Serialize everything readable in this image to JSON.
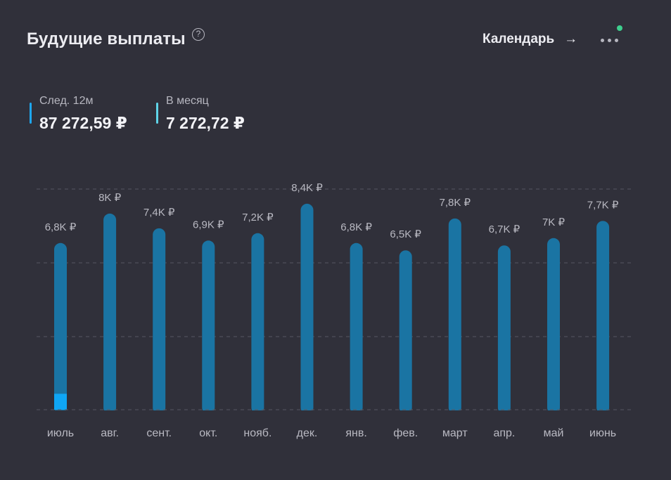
{
  "header": {
    "title": "Будущие выплаты",
    "help_icon": "question-circle-icon",
    "help_glyph": "?",
    "calendar_label": "Календарь",
    "calendar_arrow": "→",
    "more_icon": "ellipsis-icon",
    "notification_color": "#3ecf8e"
  },
  "stats": [
    {
      "label": "След. 12м",
      "value": "87 272,59 ₽",
      "color": "#1ea7f0"
    },
    {
      "label": "В месяц",
      "value": "7 272,72 ₽",
      "color": "#5fd4e8"
    }
  ],
  "chart_data": {
    "type": "bar",
    "categories": [
      "июль",
      "авг.",
      "сент.",
      "окт.",
      "нояб.",
      "дек.",
      "янв.",
      "фев.",
      "март",
      "апр.",
      "май",
      "июнь"
    ],
    "values": [
      6.8,
      8.0,
      7.4,
      6.9,
      7.2,
      8.4,
      6.8,
      6.5,
      7.8,
      6.7,
      7.0,
      7.7
    ],
    "value_labels": [
      "6,8K ₽",
      "8K ₽",
      "7,4K ₽",
      "6,9K ₽",
      "7,2K ₽",
      "8,4K ₽",
      "6,8K ₽",
      "6,5K ₽",
      "7,8K ₽",
      "6,7K ₽",
      "7K ₽",
      "7,7K ₽"
    ],
    "received_values": [
      0.65,
      0,
      0,
      0,
      0,
      0,
      0,
      0,
      0,
      0,
      0,
      0
    ],
    "ylim": [
      0,
      9.0
    ],
    "grid": true,
    "bar_color": "#1a74a3",
    "received_color": "#0fa6f5"
  }
}
